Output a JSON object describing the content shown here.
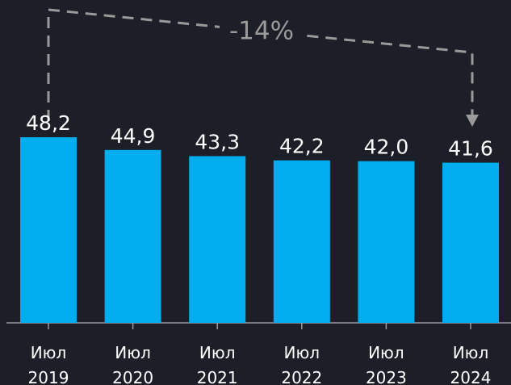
{
  "chart_data": {
    "type": "bar",
    "categories": [
      "Июл 2019",
      "Июл 2020",
      "Июл 2021",
      "Июл 2022",
      "Июл 2023",
      "Июл 2024"
    ],
    "values": [
      48.2,
      44.9,
      43.3,
      42.2,
      42.0,
      41.6
    ],
    "value_labels": [
      "48,2",
      "44,9",
      "43,3",
      "42,2",
      "42,0",
      "41,6"
    ],
    "color": "#00aeef",
    "ylim": [
      0,
      50
    ],
    "annotation": "-14%"
  }
}
